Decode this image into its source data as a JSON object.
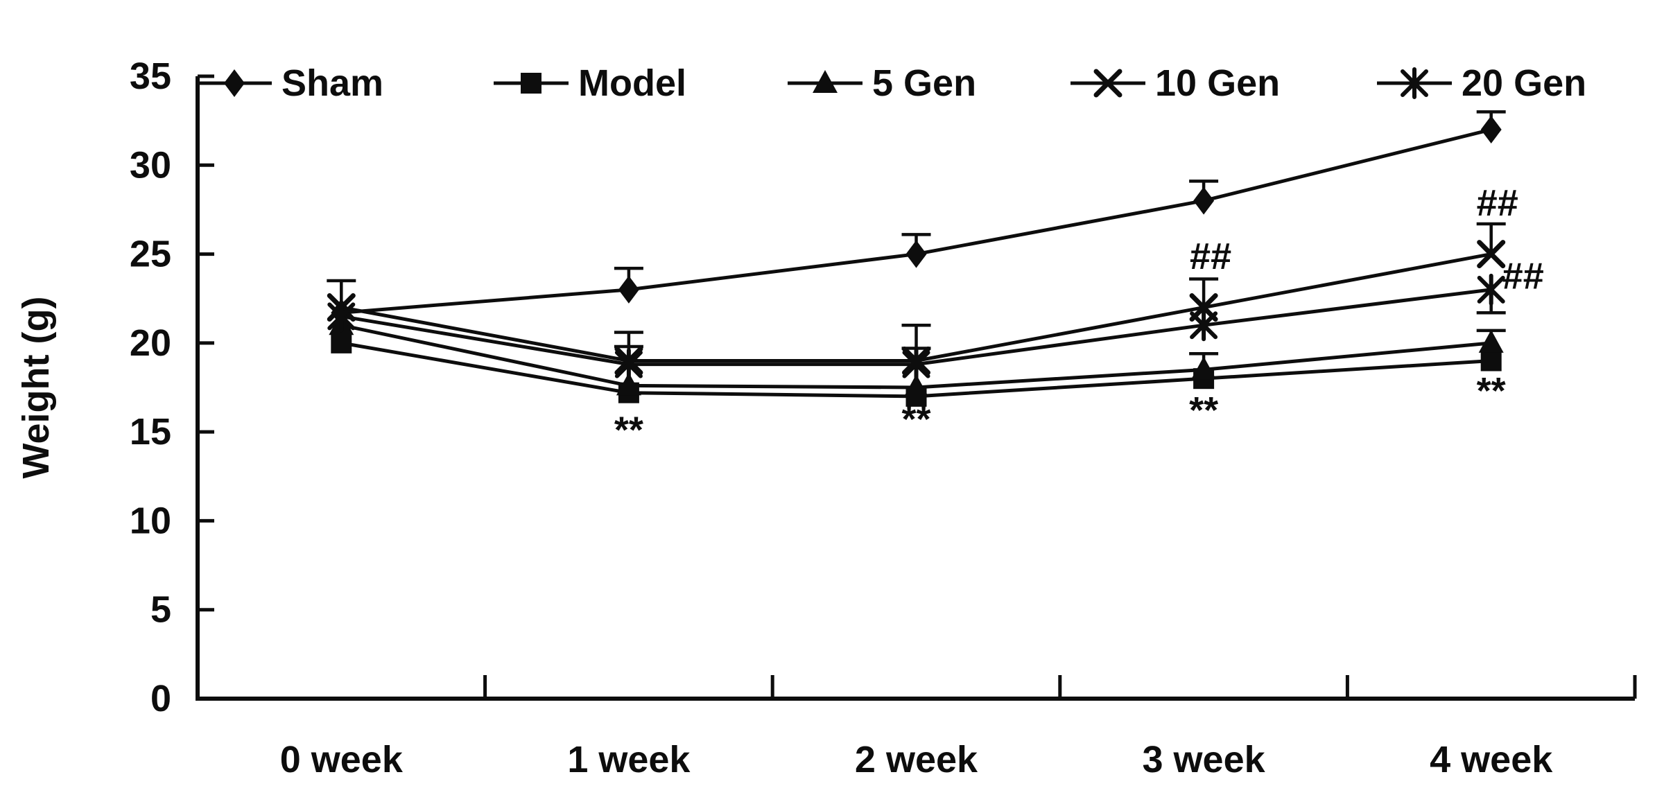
{
  "figure": {
    "background": "#ffffff",
    "ink": "#0d0d0d"
  },
  "chart_data": {
    "type": "line",
    "title": "",
    "xlabel": "",
    "ylabel": "Weight (g)",
    "ylim": [
      0,
      35
    ],
    "ytick_step": 5,
    "grid": false,
    "legend_position": "top",
    "categories": [
      "0 week",
      "1 week",
      "2 week",
      "3 week",
      "4 week"
    ],
    "series": [
      {
        "name": "Sham",
        "marker": "diamond",
        "values": [
          21.7,
          23,
          25,
          28,
          32
        ],
        "err_up": [
          0,
          1.2,
          1.1,
          1.1,
          1.0
        ],
        "err_down": [
          0,
          0,
          0,
          0,
          0
        ]
      },
      {
        "name": "Model",
        "marker": "square",
        "values": [
          20,
          17.2,
          17,
          18,
          19
        ],
        "err_up": [
          0,
          0,
          0,
          0,
          0
        ],
        "err_down": [
          0,
          0,
          0,
          0,
          0
        ]
      },
      {
        "name": "5 Gen",
        "marker": "triangle",
        "values": [
          21,
          17.6,
          17.5,
          18.5,
          20
        ],
        "err_up": [
          0,
          0,
          0,
          0.9,
          0.7
        ],
        "err_down": [
          0,
          0,
          0,
          0,
          0
        ]
      },
      {
        "name": "10 Gen",
        "marker": "x",
        "values": [
          22,
          19,
          19,
          22,
          25
        ],
        "err_up": [
          1.5,
          1.6,
          2.0,
          1.6,
          1.7
        ],
        "err_down": [
          0,
          0,
          0,
          0,
          0
        ]
      },
      {
        "name": "20 Gen",
        "marker": "star",
        "values": [
          21.5,
          18.8,
          18.8,
          21,
          23
        ],
        "err_up": [
          0,
          1.0,
          0.9,
          0,
          0
        ],
        "err_down": [
          0,
          0,
          0,
          0,
          1.3
        ]
      }
    ],
    "annotations": [
      {
        "text": "**",
        "week": 1,
        "value": 15.5,
        "dx": 0
      },
      {
        "text": "**",
        "week": 2,
        "value": 16.1,
        "dx": 0
      },
      {
        "text": "**",
        "week": 3,
        "value": 16.6,
        "dx": 0
      },
      {
        "text": "**",
        "week": 4,
        "value": 17.7,
        "dx": 0
      },
      {
        "text": "##",
        "week": 3,
        "value": 24.9,
        "dx": 10
      },
      {
        "text": "##",
        "week": 4,
        "value": 27.9,
        "dx": 9
      },
      {
        "text": "##",
        "week": 4,
        "value": 23.8,
        "dx": 46
      }
    ]
  }
}
